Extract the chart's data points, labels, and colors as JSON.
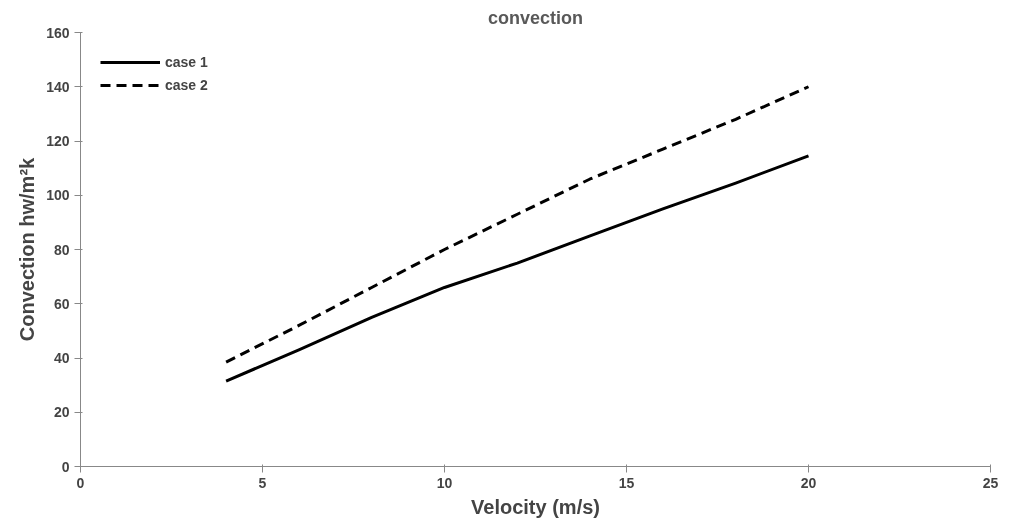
{
  "chart_data": {
    "type": "line",
    "title": "convection",
    "xlabel": "Velocity (m/s)",
    "ylabel": "Convection hw/m²k",
    "xlim": [
      0,
      25
    ],
    "xticks": [
      0,
      5,
      10,
      15,
      20,
      25
    ],
    "ylim": [
      0,
      160
    ],
    "yticks": [
      0,
      20,
      40,
      60,
      80,
      100,
      120,
      140,
      160
    ],
    "grid": false,
    "legend": "top left",
    "series": [
      {
        "name": "case 1",
        "color": "#000000",
        "line_style": "solid",
        "x": [
          4,
          6,
          8,
          10,
          12,
          14,
          16,
          18,
          20
        ],
        "values": [
          31.5,
          43,
          55,
          66,
          75,
          85,
          95,
          104.5,
          114.5
        ]
      },
      {
        "name": "case 2",
        "color": "#000000",
        "line_style": "dashed",
        "x": [
          4,
          6,
          8,
          10,
          12,
          14,
          16,
          18,
          20
        ],
        "values": [
          38.5,
          52,
          66,
          80,
          93,
          106,
          117,
          128,
          140
        ]
      }
    ]
  }
}
